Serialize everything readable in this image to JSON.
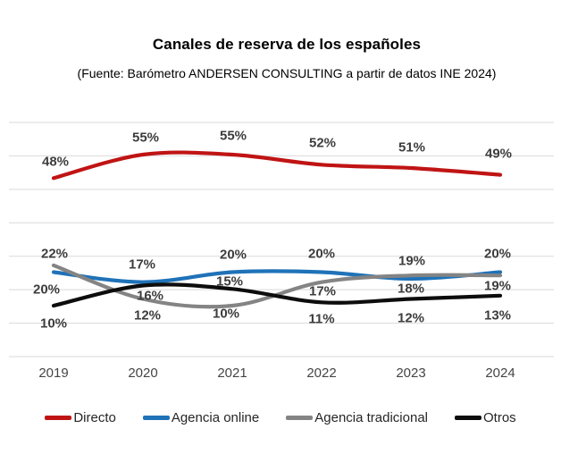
{
  "header": {
    "title": "Canales de reserva de los españoles",
    "subtitle": "(Fuente: Barómetro ANDERSEN CONSULTING a partir de datos INE 2024)"
  },
  "chart_data": {
    "type": "line",
    "title": "Canales de reserva de los españoles",
    "subtitle": "(Fuente: Barómetro ANDERSEN CONSULTING a partir de datos INE 2024)",
    "categories": [
      "2019",
      "2020",
      "2021",
      "2022",
      "2023",
      "2024"
    ],
    "series": [
      {
        "name": "Directo",
        "color": "#c01414",
        "values": [
          48,
          55,
          55,
          52,
          51,
          49
        ]
      },
      {
        "name": "Agencia online",
        "color": "#1f72b8",
        "values": [
          20,
          17,
          20,
          20,
          18,
          20
        ]
      },
      {
        "name": "Agencia tradicional",
        "color": "#848484",
        "values": [
          22,
          12,
          10,
          17,
          19,
          19
        ]
      },
      {
        "name": "Otros",
        "color": "#0d0d0d",
        "values": [
          10,
          16,
          15,
          11,
          12,
          13
        ]
      }
    ],
    "value_suffix": "%",
    "data_labels": "all points, value + %",
    "smoothed": true,
    "x_axis": "years, no axis line",
    "y_axis": "hidden, gridlines every 10%",
    "ylim": [
      -5,
      65
    ],
    "grid_color": "#d9d9d9",
    "legend_position": "bottom"
  }
}
